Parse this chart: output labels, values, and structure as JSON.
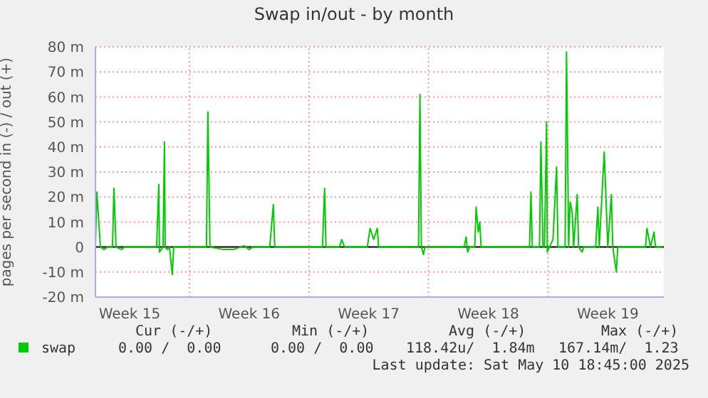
{
  "chart_data": {
    "type": "line",
    "title": "Swap in/out - by month",
    "ylabel": "pages per second in (-) / out (+)",
    "x": [
      "2025-04-07T12:00",
      "2025-04-07T14:00",
      "2025-04-07T19:00",
      "2025-04-08T00:00",
      "2025-04-08T05:00",
      "2025-04-08T12:00",
      "2025-04-08T14:00",
      "2025-04-08T17:00",
      "2025-04-09T01:00",
      "2025-04-09T05:00",
      "2025-04-11T02:00",
      "2025-04-11T05:00",
      "2025-04-11T06:00",
      "2025-04-11T11:00",
      "2025-04-11T13:00",
      "2025-04-11T14:00",
      "2025-04-11T17:00",
      "2025-04-11T20:00",
      "2025-04-12T00:00",
      "2025-04-12T02:00",
      "2025-04-14T00:00",
      "2025-04-14T02:00",
      "2025-04-14T05:00",
      "2025-04-15T00:00",
      "2025-04-15T14:00",
      "2025-04-16T05:00",
      "2025-04-16T12:00",
      "2025-04-16T17:00",
      "2025-04-17T17:00",
      "2025-04-17T22:00",
      "2025-04-18T00:00",
      "2025-04-20T19:00",
      "2025-04-20T22:00",
      "2025-04-21T00:00",
      "2025-04-21T19:00",
      "2025-04-21T22:00",
      "2025-04-22T02:00",
      "2025-04-23T10:00",
      "2025-04-23T14:00",
      "2025-04-23T19:00",
      "2025-04-24T00:00",
      "2025-04-24T02:00",
      "2025-04-26T10:00",
      "2025-04-26T12:00",
      "2025-04-26T14:00",
      "2025-04-26T17:00",
      "2025-04-26T19:00",
      "2025-04-29T02:00",
      "2025-04-29T05:00",
      "2025-04-29T07:00",
      "2025-04-29T10:00",
      "2025-04-29T17:00",
      "2025-04-29T19:00",
      "2025-04-29T22:00",
      "2025-04-30T00:00",
      "2025-04-30T02:00",
      "2025-05-02T22:00",
      "2025-05-03T00:00",
      "2025-05-03T02:00",
      "2025-05-03T12:00",
      "2025-05-03T14:00",
      "2025-05-03T17:00",
      "2025-05-03T19:00",
      "2025-05-03T22:00",
      "2025-05-03T23:00",
      "2025-05-04T02:00",
      "2025-05-04T07:00",
      "2025-05-04T12:00",
      "2025-05-04T14:00",
      "2025-05-05T00:00",
      "2025-05-05T02:00",
      "2025-05-05T05:00",
      "2025-05-05T07:00",
      "2025-05-05T10:00",
      "2025-05-05T12:00",
      "2025-05-05T17:00",
      "2025-05-05T19:00",
      "2025-05-06T00:00",
      "2025-05-06T02:00",
      "2025-05-06T19:00",
      "2025-05-06T22:00",
      "2025-05-07T00:00",
      "2025-05-07T07:00",
      "2025-05-07T12:00",
      "2025-05-07T17:00",
      "2025-05-07T19:00",
      "2025-05-08T00:00",
      "2025-05-08T02:00",
      "2025-05-09T17:00",
      "2025-05-09T19:00",
      "2025-05-10T00:00",
      "2025-05-10T05:00",
      "2025-05-10T07:00",
      "2025-05-10T17:00"
    ],
    "series": [
      {
        "name": "swap",
        "color": "#00cc00",
        "values": [
          0,
          22,
          0,
          -1,
          0,
          0,
          23.5,
          0,
          -1,
          0,
          0,
          25,
          -2,
          0,
          42,
          0,
          -1,
          0,
          -11,
          0,
          0,
          54,
          0,
          -1,
          -1,
          0.5,
          -1,
          0,
          0,
          17,
          0,
          0,
          23.5,
          0,
          0,
          3,
          0,
          0,
          7.5,
          3,
          7.5,
          0,
          0,
          61,
          0,
          -3,
          0,
          0,
          4,
          -2,
          0,
          0,
          16,
          6,
          10,
          0,
          0,
          22,
          0,
          0,
          42,
          0,
          0,
          50,
          -2,
          0,
          3,
          32,
          0,
          0,
          78,
          0,
          18,
          14,
          0,
          21,
          0,
          -2,
          0,
          0,
          16,
          0,
          38,
          0,
          21,
          0,
          -10,
          0,
          0,
          7.5,
          0,
          6,
          0,
          0
        ]
      }
    ],
    "xlim": [
      "2025-04-07T12:00",
      "2025-05-10T18:45"
    ],
    "xticks": [
      {
        "value": "2025-04-09T12:00",
        "label": "Week 15"
      },
      {
        "value": "2025-04-16T12:00",
        "label": "Week 16"
      },
      {
        "value": "2025-04-23T12:00",
        "label": "Week 17"
      },
      {
        "value": "2025-04-30T12:00",
        "label": "Week 18"
      },
      {
        "value": "2025-05-07T12:00",
        "label": "Week 19"
      }
    ],
    "ylim": [
      -20,
      80
    ],
    "yticks": [
      {
        "value": -20,
        "label": "-20 m"
      },
      {
        "value": -10,
        "label": "-10 m"
      },
      0,
      {
        "value": 10,
        "label": "10 m"
      },
      {
        "value": 20,
        "label": "20 m"
      },
      {
        "value": 30,
        "label": "30 m"
      },
      {
        "value": 40,
        "label": "40 m"
      },
      {
        "value": 50,
        "label": "50 m"
      },
      {
        "value": 60,
        "label": "60 m"
      },
      {
        "value": 70,
        "label": "70 m"
      },
      {
        "value": 80,
        "label": "80 m"
      }
    ],
    "grid": "y",
    "ref_lines": [
      {
        "axis": "x",
        "value": "2025-04-13",
        "color": "#ff9999",
        "line_style": "dotted"
      },
      {
        "axis": "x",
        "value": "2025-04-20",
        "color": "#ff9999",
        "line_style": "dotted"
      },
      {
        "axis": "x",
        "value": "2025-04-27",
        "color": "#ff9999",
        "line_style": "dotted"
      },
      {
        "axis": "x",
        "value": "2025-05-04",
        "color": "#ff9999",
        "line_style": "dotted"
      },
      {
        "axis": "y",
        "value": 0,
        "color": "#000000",
        "line_style": "solid"
      }
    ],
    "legend": "bottom",
    "marker": "none",
    "line_style": "solid",
    "annotations": [
      "Cur (-/+)",
      "Min (-/+)",
      "Avg (-/+)",
      "Max (-/+)",
      "0.00 /  0.00",
      "0.00 /  0.00",
      "118.42u/  1.84m",
      "167.14m/  1.23",
      "Last update: Sat May 10 18:45:00 2025"
    ]
  }
}
